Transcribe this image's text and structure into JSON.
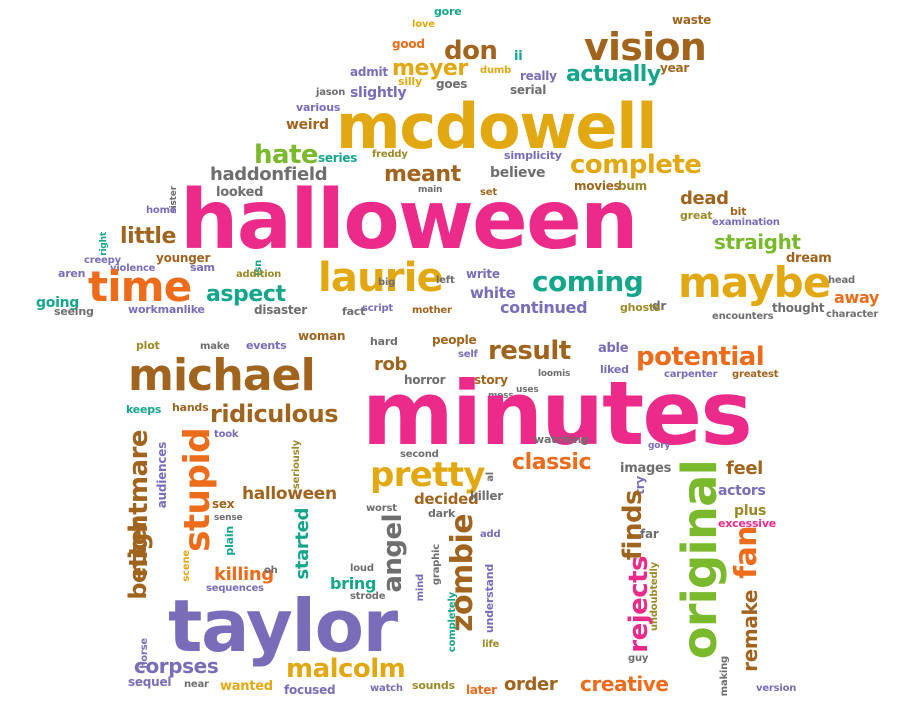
{
  "cloud": {
    "palette": {
      "pink": "#ec2a89",
      "gold": "#e2a812",
      "brown": "#a0641e",
      "green": "#7ab82c",
      "teal": "#14a68a",
      "orange": "#ec6c1c",
      "purple": "#7a6cb8",
      "grey": "#6e6e6e",
      "olive": "#9c8a28"
    },
    "words": [
      {
        "text": "waste",
        "color": "brown"
      },
      {
        "text": "gore",
        "color": "teal"
      },
      {
        "text": "love",
        "color": "gold"
      },
      {
        "text": "vision",
        "color": "brown"
      },
      {
        "text": "don",
        "color": "brown"
      },
      {
        "text": "good",
        "color": "orange"
      },
      {
        "text": "ii",
        "color": "teal"
      },
      {
        "text": "meyer",
        "color": "gold"
      },
      {
        "text": "dumb",
        "color": "gold"
      },
      {
        "text": "really",
        "color": "purple"
      },
      {
        "text": "actually",
        "color": "teal"
      },
      {
        "text": "year",
        "color": "brown"
      },
      {
        "text": "admit",
        "color": "purple"
      },
      {
        "text": "silly",
        "color": "gold"
      },
      {
        "text": "goes",
        "color": "grey"
      },
      {
        "text": "serial",
        "color": "grey"
      },
      {
        "text": "jason",
        "color": "grey"
      },
      {
        "text": "slightly",
        "color": "purple"
      },
      {
        "text": "various",
        "color": "purple"
      },
      {
        "text": "mcdowell",
        "color": "gold"
      },
      {
        "text": "weird",
        "color": "brown"
      },
      {
        "text": "hate",
        "color": "green"
      },
      {
        "text": "series",
        "color": "teal"
      },
      {
        "text": "freddy",
        "color": "olive"
      },
      {
        "text": "simplicity",
        "color": "purple"
      },
      {
        "text": "complete",
        "color": "gold"
      },
      {
        "text": "meant",
        "color": "brown"
      },
      {
        "text": "believe",
        "color": "grey"
      },
      {
        "text": "haddonfield",
        "color": "grey"
      },
      {
        "text": "main",
        "color": "grey"
      },
      {
        "text": "set",
        "color": "brown"
      },
      {
        "text": "movies",
        "color": "brown"
      },
      {
        "text": "bum",
        "color": "olive"
      },
      {
        "text": "dead",
        "color": "brown"
      },
      {
        "text": "great",
        "color": "olive"
      },
      {
        "text": "looked",
        "color": "grey"
      },
      {
        "text": "sister",
        "color": "grey"
      },
      {
        "text": "home",
        "color": "purple"
      },
      {
        "text": "bit",
        "color": "brown"
      },
      {
        "text": "examination",
        "color": "purple"
      },
      {
        "text": "halloween",
        "color": "pink"
      },
      {
        "text": "right",
        "color": "teal"
      },
      {
        "text": "little",
        "color": "brown"
      },
      {
        "text": "straight",
        "color": "green"
      },
      {
        "text": "creepy",
        "color": "purple"
      },
      {
        "text": "younger",
        "color": "brown"
      },
      {
        "text": "violence",
        "color": "purple"
      },
      {
        "text": "dream",
        "color": "brown"
      },
      {
        "text": "aren",
        "color": "purple"
      },
      {
        "text": "time",
        "color": "orange"
      },
      {
        "text": "sam",
        "color": "purple"
      },
      {
        "text": "isn",
        "color": "teal"
      },
      {
        "text": "addition",
        "color": "olive"
      },
      {
        "text": "laurie",
        "color": "gold"
      },
      {
        "text": "big",
        "color": "grey"
      },
      {
        "text": "left",
        "color": "grey"
      },
      {
        "text": "write",
        "color": "purple"
      },
      {
        "text": "coming",
        "color": "teal"
      },
      {
        "text": "maybe",
        "color": "gold"
      },
      {
        "text": "head",
        "color": "grey"
      },
      {
        "text": "going",
        "color": "teal"
      },
      {
        "text": "aspect",
        "color": "teal"
      },
      {
        "text": "white",
        "color": "purple"
      },
      {
        "text": "dr",
        "color": "grey"
      },
      {
        "text": "away",
        "color": "orange"
      },
      {
        "text": "seeing",
        "color": "grey"
      },
      {
        "text": "workmanlike",
        "color": "purple"
      },
      {
        "text": "disaster",
        "color": "grey"
      },
      {
        "text": "fact",
        "color": "grey"
      },
      {
        "text": "script",
        "color": "purple"
      },
      {
        "text": "mother",
        "color": "brown"
      },
      {
        "text": "continued",
        "color": "purple"
      },
      {
        "text": "ghosts",
        "color": "olive"
      },
      {
        "text": "encounters",
        "color": "grey"
      },
      {
        "text": "thought",
        "color": "grey"
      },
      {
        "text": "character",
        "color": "grey"
      },
      {
        "text": "plot",
        "color": "olive"
      },
      {
        "text": "make",
        "color": "grey"
      },
      {
        "text": "events",
        "color": "purple"
      },
      {
        "text": "woman",
        "color": "brown"
      },
      {
        "text": "hard",
        "color": "grey"
      },
      {
        "text": "people",
        "color": "brown"
      },
      {
        "text": "self",
        "color": "purple"
      },
      {
        "text": "able",
        "color": "purple"
      },
      {
        "text": "result",
        "color": "brown"
      },
      {
        "text": "potential",
        "color": "orange"
      },
      {
        "text": "michael",
        "color": "brown"
      },
      {
        "text": "rob",
        "color": "brown"
      },
      {
        "text": "story",
        "color": "brown"
      },
      {
        "text": "loomis",
        "color": "grey"
      },
      {
        "text": "liked",
        "color": "purple"
      },
      {
        "text": "carpenter",
        "color": "purple"
      },
      {
        "text": "greatest",
        "color": "brown"
      },
      {
        "text": "horror",
        "color": "grey"
      },
      {
        "text": "mess",
        "color": "grey"
      },
      {
        "text": "uses",
        "color": "grey"
      },
      {
        "text": "keeps",
        "color": "teal"
      },
      {
        "text": "hands",
        "color": "brown"
      },
      {
        "text": "ridiculous",
        "color": "brown"
      },
      {
        "text": "minutes",
        "color": "pink"
      },
      {
        "text": "took",
        "color": "purple"
      },
      {
        "text": "watching",
        "color": "grey"
      },
      {
        "text": "gory",
        "color": "purple"
      },
      {
        "text": "nightmare",
        "color": "brown"
      },
      {
        "text": "audiences",
        "color": "purple"
      },
      {
        "text": "stupid",
        "color": "orange"
      },
      {
        "text": "seriously",
        "color": "olive"
      },
      {
        "text": "second",
        "color": "grey"
      },
      {
        "text": "pretty",
        "color": "gold"
      },
      {
        "text": "classic",
        "color": "orange"
      },
      {
        "text": "images",
        "color": "grey"
      },
      {
        "text": "feel",
        "color": "brown"
      },
      {
        "text": "try",
        "color": "purple"
      },
      {
        "text": "al",
        "color": "grey"
      },
      {
        "text": "original",
        "color": "green"
      },
      {
        "text": "actors",
        "color": "purple"
      },
      {
        "text": "halloween",
        "color": "brown"
      },
      {
        "text": "sex",
        "color": "brown"
      },
      {
        "text": "decided",
        "color": "brown"
      },
      {
        "text": "killer",
        "color": "grey"
      },
      {
        "text": "plus",
        "color": "olive"
      },
      {
        "text": "sense",
        "color": "grey"
      },
      {
        "text": "worst",
        "color": "grey"
      },
      {
        "text": "dark",
        "color": "grey"
      },
      {
        "text": "finds",
        "color": "brown"
      },
      {
        "text": "excessive",
        "color": "pink"
      },
      {
        "text": "angel",
        "color": "grey"
      },
      {
        "text": "add",
        "color": "purple"
      },
      {
        "text": "far",
        "color": "grey"
      },
      {
        "text": "plain",
        "color": "teal"
      },
      {
        "text": "started",
        "color": "teal"
      },
      {
        "text": "zombie",
        "color": "brown"
      },
      {
        "text": "fan",
        "color": "orange"
      },
      {
        "text": "better",
        "color": "brown"
      },
      {
        "text": "killing",
        "color": "orange"
      },
      {
        "text": "scene",
        "color": "gold"
      },
      {
        "text": "loud",
        "color": "grey"
      },
      {
        "text": "graphic",
        "color": "grey"
      },
      {
        "text": "oh",
        "color": "grey"
      },
      {
        "text": "bring",
        "color": "teal"
      },
      {
        "text": "mind",
        "color": "purple"
      },
      {
        "text": "remake",
        "color": "brown"
      },
      {
        "text": "sequences",
        "color": "purple"
      },
      {
        "text": "strode",
        "color": "grey"
      },
      {
        "text": "understand",
        "color": "purple"
      },
      {
        "text": "rejects",
        "color": "pink"
      },
      {
        "text": "undoubtedly",
        "color": "olive"
      },
      {
        "text": "taylor",
        "color": "purple"
      },
      {
        "text": "completely",
        "color": "teal"
      },
      {
        "text": "life",
        "color": "olive"
      },
      {
        "text": "horse",
        "color": "purple"
      },
      {
        "text": "corpses",
        "color": "purple"
      },
      {
        "text": "malcolm",
        "color": "gold"
      },
      {
        "text": "guy",
        "color": "grey"
      },
      {
        "text": "making",
        "color": "grey"
      },
      {
        "text": "sequel",
        "color": "purple"
      },
      {
        "text": "near",
        "color": "grey"
      },
      {
        "text": "wanted",
        "color": "gold"
      },
      {
        "text": "focused",
        "color": "purple"
      },
      {
        "text": "watch",
        "color": "purple"
      },
      {
        "text": "sounds",
        "color": "olive"
      },
      {
        "text": "later",
        "color": "orange"
      },
      {
        "text": "order",
        "color": "brown"
      },
      {
        "text": "creative",
        "color": "orange"
      },
      {
        "text": "version",
        "color": "purple"
      }
    ]
  }
}
